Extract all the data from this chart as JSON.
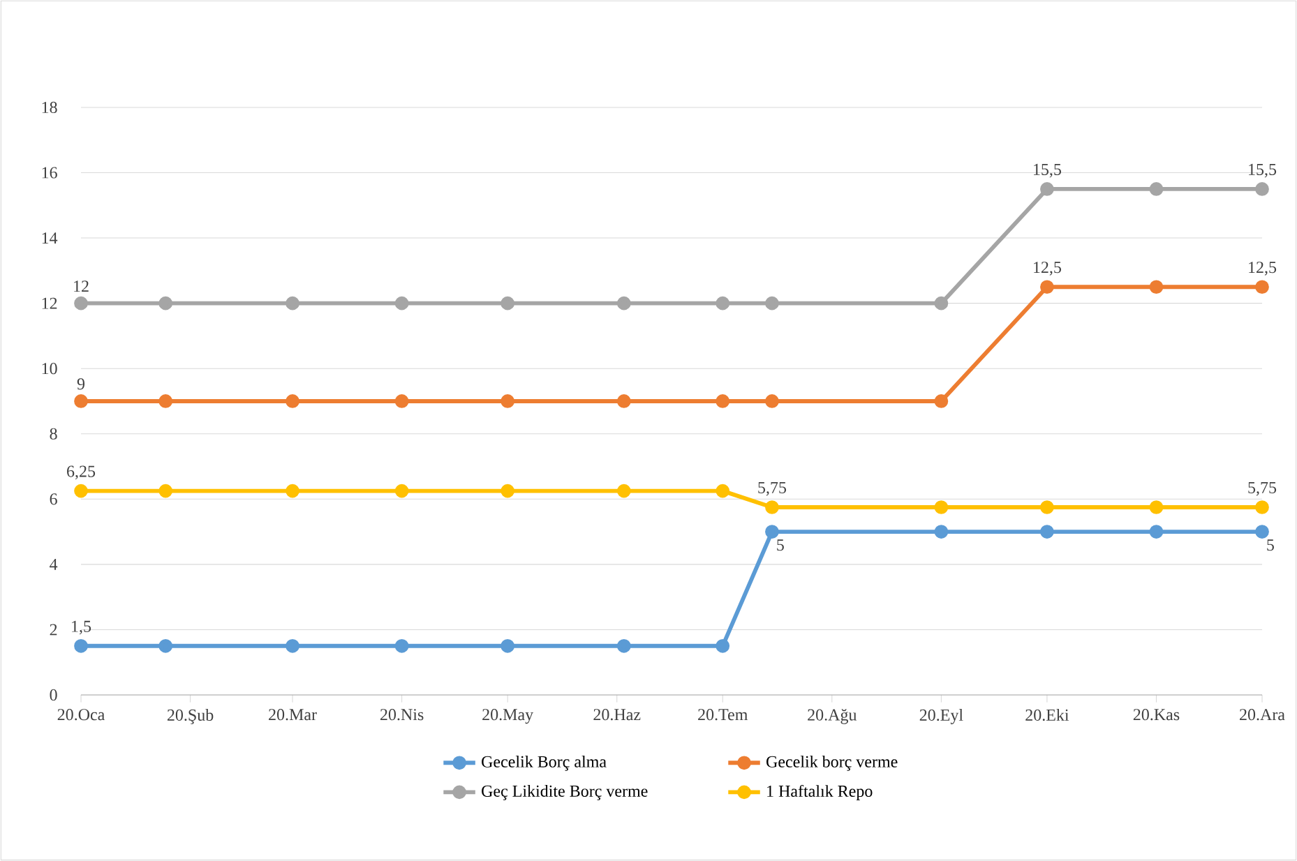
{
  "chart_data": {
    "type": "line",
    "x": [
      "2020-01-01",
      "2020-01-25",
      "2020-03-01",
      "2020-04-01",
      "2020-05-01",
      "2020-06-03",
      "2020-07-01",
      "2020-07-15",
      "2020-09-01",
      "2020-10-01",
      "2020-11-01",
      "2020-12-01"
    ],
    "series": [
      {
        "name": "Gecelik Borç alma",
        "color": "#5b9bd5",
        "values": [
          1.5,
          1.5,
          1.5,
          1.5,
          1.5,
          1.5,
          1.5,
          5,
          5,
          5,
          5,
          5
        ],
        "value_labels": [
          "1,5",
          null,
          null,
          null,
          null,
          null,
          null,
          "5",
          null,
          null,
          null,
          "5"
        ]
      },
      {
        "name": "Gecelik borç verme",
        "color": "#ed7d31",
        "values": [
          9,
          9,
          9,
          9,
          9,
          9,
          9,
          9,
          9,
          12.5,
          12.5,
          12.5
        ],
        "value_labels": [
          "9",
          null,
          null,
          null,
          null,
          null,
          null,
          null,
          null,
          "12,5",
          null,
          "12,5"
        ]
      },
      {
        "name": "Geç Likidite Borç verme",
        "color": "#a5a5a5",
        "values": [
          12,
          12,
          12,
          12,
          12,
          12,
          12,
          12,
          12,
          15.5,
          15.5,
          15.5
        ],
        "value_labels": [
          "12",
          null,
          null,
          null,
          null,
          null,
          null,
          null,
          null,
          "15,5",
          null,
          "15,5"
        ]
      },
      {
        "name": "1 Haftalık Repo",
        "color": "#ffc000",
        "values": [
          6.25,
          6.25,
          6.25,
          6.25,
          6.25,
          6.25,
          6.25,
          5.75,
          5.75,
          5.75,
          5.75,
          5.75
        ],
        "value_labels": [
          "6,25",
          null,
          null,
          null,
          null,
          null,
          null,
          "5,75",
          null,
          null,
          null,
          "5,75"
        ]
      }
    ],
    "xlim": [
      "2020-01-01",
      "2020-12-01"
    ],
    "xticks": [
      {
        "value": "2020-01-01",
        "label": "20.Oca"
      },
      {
        "value": "2020-02-01",
        "label": "20.Şub"
      },
      {
        "value": "2020-03-01",
        "label": "20.Mar"
      },
      {
        "value": "2020-04-01",
        "label": "20.Nis"
      },
      {
        "value": "2020-05-01",
        "label": "20.May"
      },
      {
        "value": "2020-06-01",
        "label": "20.Haz"
      },
      {
        "value": "2020-07-01",
        "label": "20.Tem"
      },
      {
        "value": "2020-08-01",
        "label": "20.Ağu"
      },
      {
        "value": "2020-09-01",
        "label": "20.Eyl"
      },
      {
        "value": "2020-10-01",
        "label": "20.Eki"
      },
      {
        "value": "2020-11-01",
        "label": "20.Kas"
      },
      {
        "value": "2020-12-01",
        "label": "20.Ara"
      }
    ],
    "ylim": [
      0,
      18
    ],
    "yticks": [
      0,
      2,
      4,
      6,
      8,
      10,
      12,
      14,
      16,
      18
    ],
    "grid": "y",
    "legend": "bottom",
    "marker": "circle",
    "line_style": "solid"
  }
}
